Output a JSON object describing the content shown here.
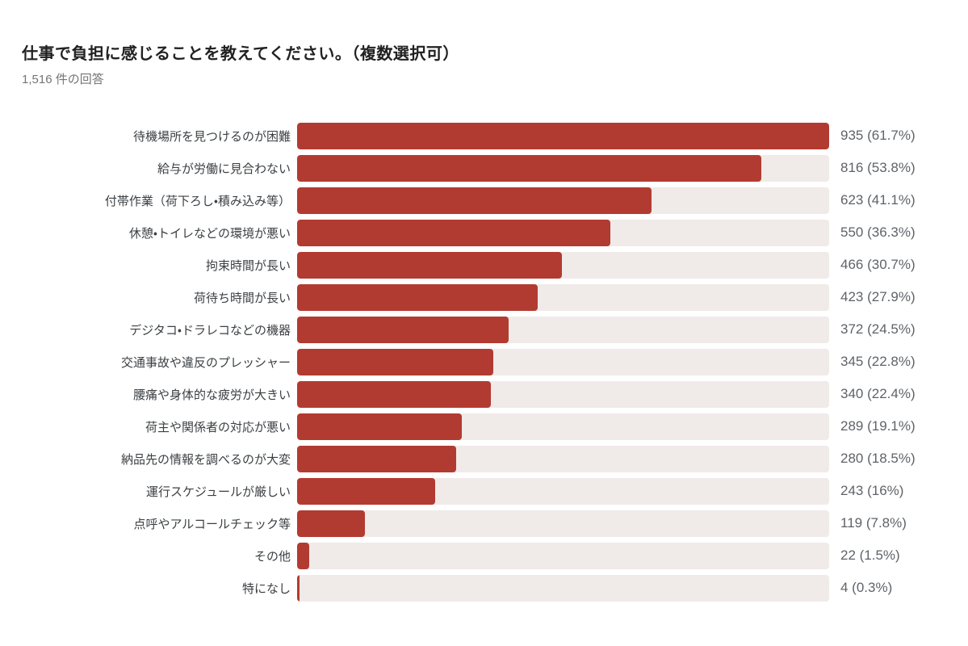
{
  "page": {
    "background_color": "#ffffff"
  },
  "header": {
    "title": "仕事で負担に感じることを教えてください。（複数選択可）",
    "subtitle": "1,516 件の回答"
  },
  "chart_data": {
    "type": "bar",
    "orientation": "horizontal",
    "title": "仕事で負担に感じることを教えてください。（複数選択可）",
    "subtitle": "1,516 件の回答",
    "response_count": 1516,
    "grid": false,
    "legend": "none",
    "axis": "none",
    "max_value": 935,
    "bar_color": "#b23b31",
    "track_color": "#f0ebe8",
    "categories": [
      "待機場所を見つけるのが困難",
      "給与が労働に見合わない",
      "付帯作業（荷下ろし・積み込み等）",
      "休憩・トイレなどの環境が悪い",
      "拘束時間が長い",
      "荷待ち時間が長い",
      "デジタコ・ドラレコなどの機器",
      "交通事故や違反のプレッシャー",
      "腰痛や身体的な疲労が大きい",
      "荷主や関係者の対応が悪い",
      "納品先の情報を調べるのが大変",
      "運行スケジュールが厳しい",
      "点呼やアルコールチェック等",
      "その他",
      "特になし"
    ],
    "values": [
      935,
      816,
      623,
      550,
      466,
      423,
      372,
      345,
      340,
      289,
      280,
      243,
      119,
      22,
      4
    ],
    "percent_labels": [
      "61.7%",
      "53.8%",
      "41.1%",
      "36.3%",
      "30.7%",
      "27.9%",
      "24.5%",
      "22.8%",
      "22.4%",
      "19.1%",
      "18.5%",
      "16%",
      "7.8%",
      "1.5%",
      "0.3%"
    ],
    "value_labels": [
      "935 (61.7%)",
      "816 (53.8%)",
      "623 (41.1%)",
      "550 (36.3%)",
      "466 (30.7%)",
      "423 (27.9%)",
      "372 (24.5%)",
      "345 (22.8%)",
      "340 (22.4%)",
      "289 (19.1%)",
      "280 (18.5%)",
      "243 (16%)",
      "119 (7.8%)",
      "22 (1.5%)",
      "4 (0.3%)"
    ]
  }
}
